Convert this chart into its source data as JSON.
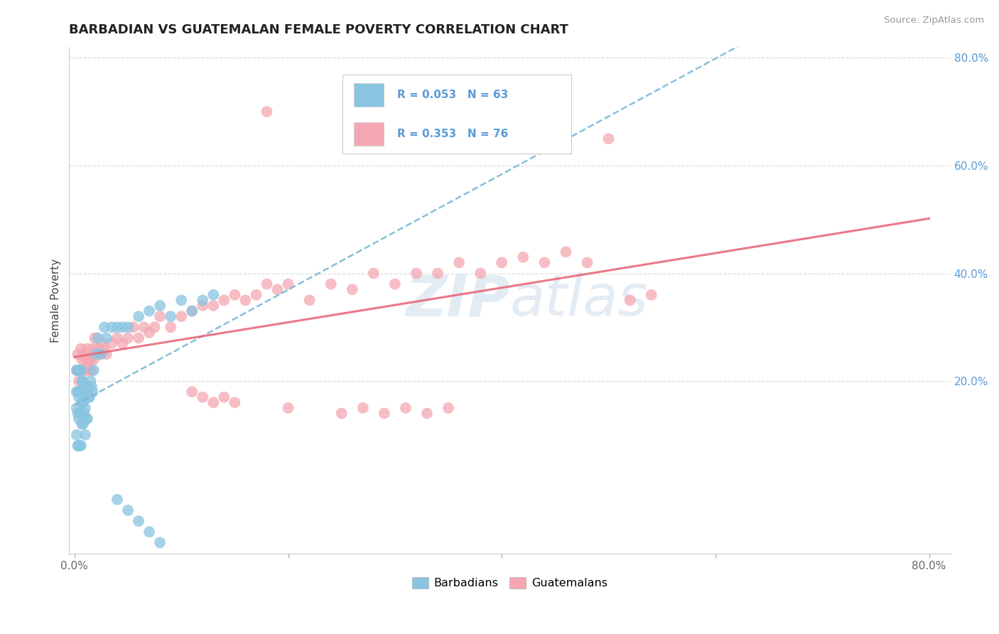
{
  "title": "BARBADIAN VS GUATEMALAN FEMALE POVERTY CORRELATION CHART",
  "source_text": "Source: ZipAtlas.com",
  "ylabel": "Female Poverty",
  "xlabel": "",
  "xlim": [
    -0.005,
    0.82
  ],
  "ylim": [
    -0.12,
    0.82
  ],
  "plot_xlim": [
    0.0,
    0.8
  ],
  "plot_ylim": [
    0.0,
    0.8
  ],
  "xtick_labels": [
    "0.0%",
    "",
    "",
    "",
    "80.0%"
  ],
  "xtick_values": [
    0.0,
    0.2,
    0.4,
    0.6,
    0.8
  ],
  "ytick_right_labels": [
    "80.0%",
    "60.0%",
    "40.0%",
    "20.0%"
  ],
  "ytick_right_values": [
    0.8,
    0.6,
    0.4,
    0.2
  ],
  "hgrid_values": [
    0.2,
    0.4,
    0.6,
    0.8
  ],
  "barbadian_color": "#89c4e1",
  "guatemalan_color": "#f4a7b2",
  "barbadian_line_color": "#7ab8d4",
  "guatemalan_line_color": "#e8697a",
  "R_barbadian": 0.053,
  "N_barbadian": 63,
  "R_guatemalan": 0.353,
  "N_guatemalan": 76,
  "watermark_zip": "ZIP",
  "watermark_atlas": "atlas",
  "barbadian_scatter_x": [
    0.002,
    0.002,
    0.002,
    0.002,
    0.003,
    0.003,
    0.003,
    0.003,
    0.004,
    0.004,
    0.004,
    0.004,
    0.005,
    0.005,
    0.005,
    0.005,
    0.006,
    0.006,
    0.006,
    0.006,
    0.007,
    0.007,
    0.007,
    0.008,
    0.008,
    0.008,
    0.009,
    0.009,
    0.01,
    0.01,
    0.01,
    0.011,
    0.011,
    0.012,
    0.012,
    0.013,
    0.014,
    0.015,
    0.016,
    0.017,
    0.018,
    0.02,
    0.022,
    0.025,
    0.028,
    0.03,
    0.035,
    0.04,
    0.045,
    0.05,
    0.06,
    0.07,
    0.08,
    0.09,
    0.1,
    0.11,
    0.12,
    0.13,
    0.04,
    0.05,
    0.06,
    0.07,
    0.08
  ],
  "barbadian_scatter_y": [
    0.22,
    0.18,
    0.15,
    0.1,
    0.22,
    0.18,
    0.14,
    0.08,
    0.22,
    0.17,
    0.13,
    0.08,
    0.22,
    0.18,
    0.14,
    0.08,
    0.22,
    0.18,
    0.14,
    0.08,
    0.2,
    0.16,
    0.12,
    0.2,
    0.16,
    0.12,
    0.19,
    0.14,
    0.19,
    0.15,
    0.1,
    0.18,
    0.13,
    0.18,
    0.13,
    0.17,
    0.17,
    0.2,
    0.19,
    0.18,
    0.22,
    0.25,
    0.28,
    0.25,
    0.3,
    0.28,
    0.3,
    0.3,
    0.3,
    0.3,
    0.32,
    0.33,
    0.34,
    0.32,
    0.35,
    0.33,
    0.35,
    0.36,
    -0.02,
    -0.04,
    -0.06,
    -0.08,
    -0.1
  ],
  "guatemalan_scatter_x": [
    0.002,
    0.003,
    0.004,
    0.005,
    0.006,
    0.007,
    0.008,
    0.009,
    0.01,
    0.011,
    0.012,
    0.013,
    0.014,
    0.015,
    0.016,
    0.017,
    0.018,
    0.019,
    0.02,
    0.022,
    0.024,
    0.026,
    0.028,
    0.03,
    0.035,
    0.04,
    0.045,
    0.05,
    0.055,
    0.06,
    0.065,
    0.07,
    0.075,
    0.08,
    0.09,
    0.1,
    0.11,
    0.12,
    0.13,
    0.14,
    0.15,
    0.16,
    0.17,
    0.18,
    0.19,
    0.2,
    0.22,
    0.24,
    0.26,
    0.28,
    0.3,
    0.32,
    0.34,
    0.36,
    0.38,
    0.4,
    0.42,
    0.44,
    0.46,
    0.48,
    0.5,
    0.52,
    0.54,
    0.25,
    0.27,
    0.29,
    0.31,
    0.33,
    0.35,
    0.18,
    0.2,
    0.15,
    0.14,
    0.13,
    0.12,
    0.11
  ],
  "guatemalan_scatter_y": [
    0.22,
    0.25,
    0.2,
    0.22,
    0.26,
    0.24,
    0.22,
    0.25,
    0.24,
    0.22,
    0.26,
    0.24,
    0.22,
    0.24,
    0.22,
    0.26,
    0.24,
    0.28,
    0.25,
    0.26,
    0.25,
    0.27,
    0.26,
    0.25,
    0.27,
    0.28,
    0.27,
    0.28,
    0.3,
    0.28,
    0.3,
    0.29,
    0.3,
    0.32,
    0.3,
    0.32,
    0.33,
    0.34,
    0.34,
    0.35,
    0.36,
    0.35,
    0.36,
    0.38,
    0.37,
    0.38,
    0.35,
    0.38,
    0.37,
    0.4,
    0.38,
    0.4,
    0.4,
    0.42,
    0.4,
    0.42,
    0.43,
    0.42,
    0.44,
    0.42,
    0.65,
    0.35,
    0.36,
    0.14,
    0.15,
    0.14,
    0.15,
    0.14,
    0.15,
    0.7,
    0.15,
    0.16,
    0.17,
    0.16,
    0.17,
    0.18
  ]
}
